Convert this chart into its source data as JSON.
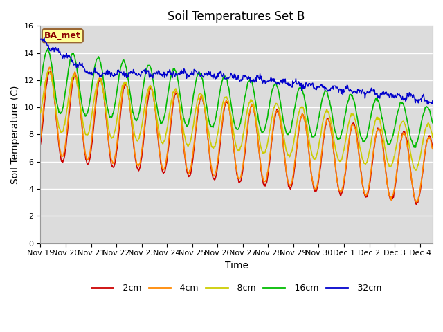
{
  "title": "Soil Temperatures Set B",
  "xlabel": "Time",
  "ylabel": "Soil Temperature (C)",
  "ylim": [
    0,
    16
  ],
  "yticks": [
    0,
    2,
    4,
    6,
    8,
    10,
    12,
    14,
    16
  ],
  "legend_label": "BA_met",
  "legend_label_color": "#8B0000",
  "legend_box_fill": "#FFFF99",
  "legend_box_edge": "#996633",
  "series_labels": [
    "-2cm",
    "-4cm",
    "-8cm",
    "-16cm",
    "-32cm"
  ],
  "series_colors": [
    "#CC0000",
    "#FF8800",
    "#CCCC00",
    "#00BB00",
    "#0000CC"
  ],
  "xtick_labels": [
    "Nov 19",
    "Nov 20",
    "Nov 21",
    "Nov 22",
    "Nov 23",
    "Nov 24",
    "Nov 25",
    "Nov 26",
    "Nov 27",
    "Nov 28",
    "Nov 29",
    "Nov 30",
    "Dec 1",
    "Dec 2",
    "Dec 3",
    "Dec 4"
  ],
  "plot_bg_color": "#DCDCDC",
  "grid_color": "#FFFFFF",
  "title_fontsize": 12,
  "axis_label_fontsize": 10,
  "tick_fontsize": 8
}
